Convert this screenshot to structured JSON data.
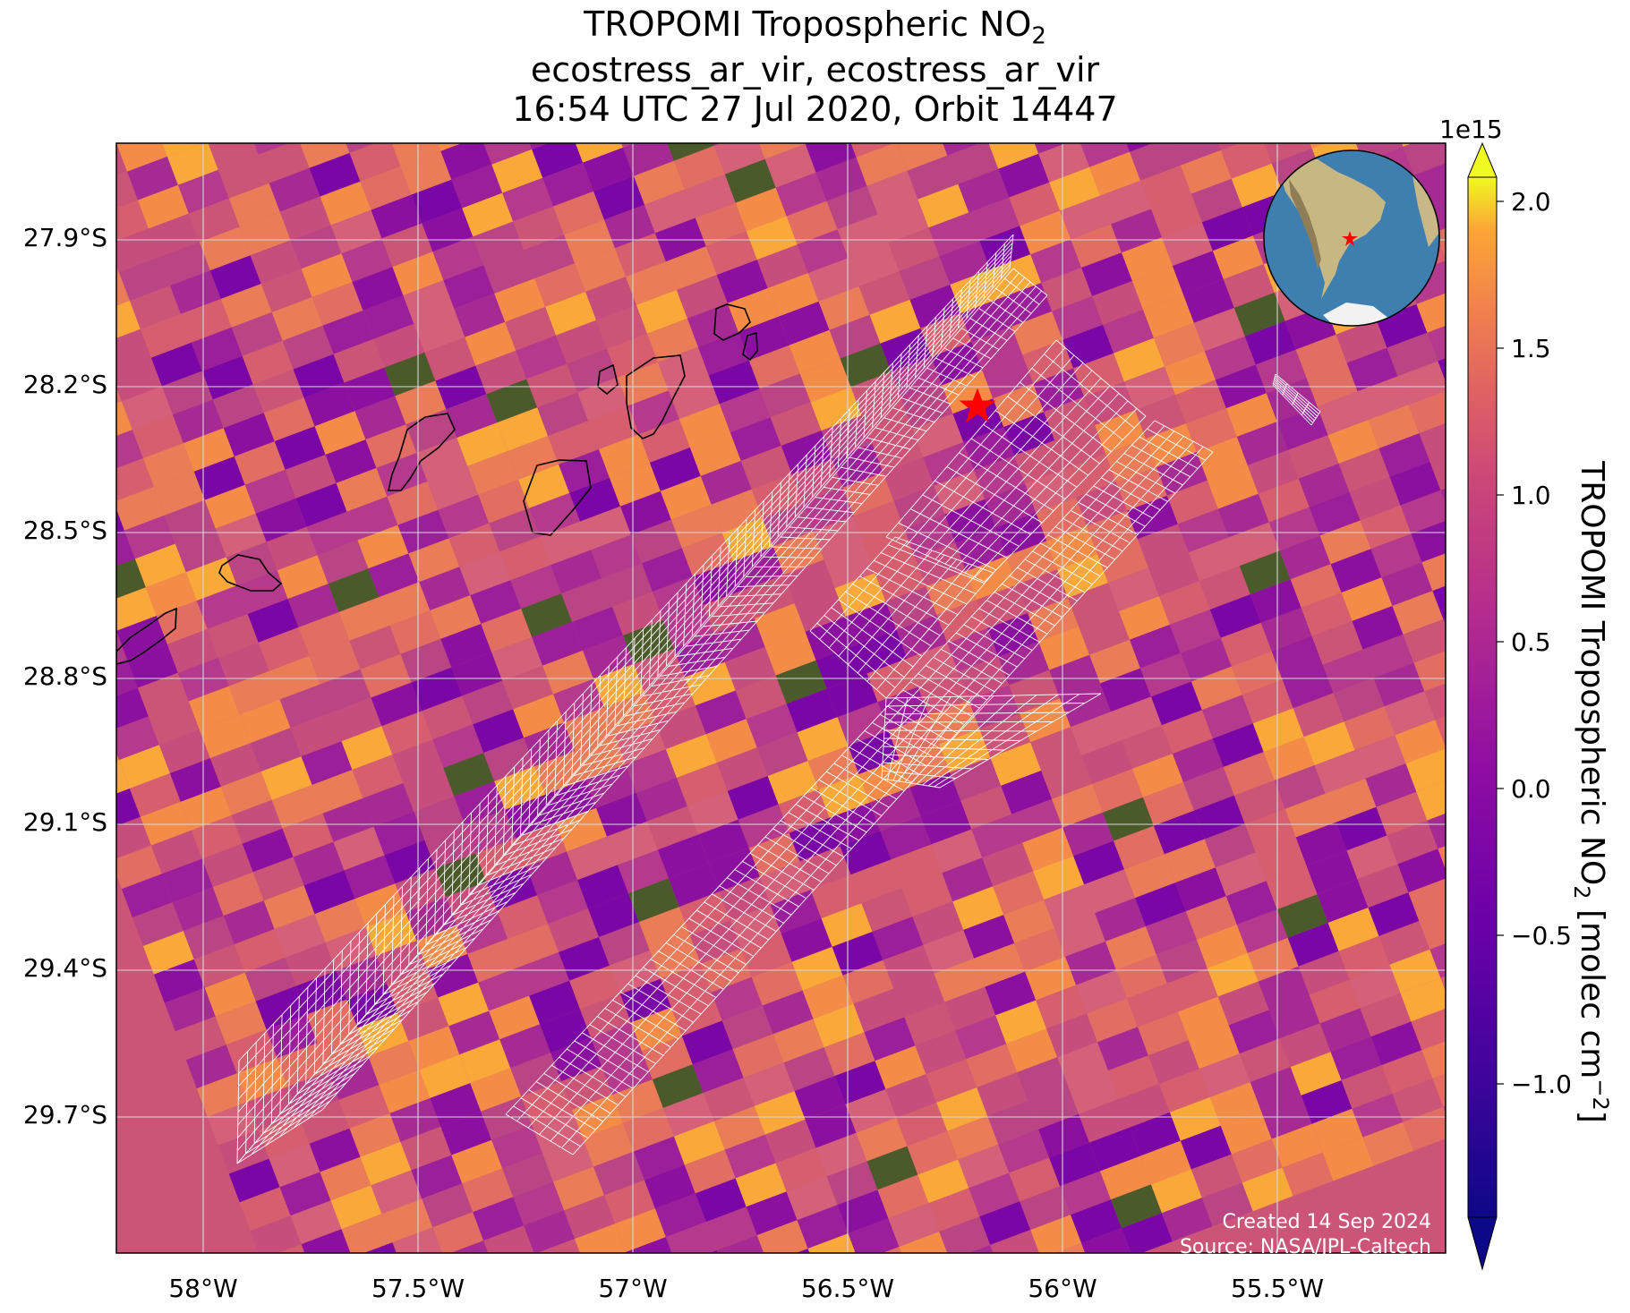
{
  "title": {
    "line1": "TROPOMI Tropospheric NO",
    "line1_sub": "2",
    "line2": "ecostress_ar_vir, ecostress_ar_vir",
    "line3": "16:54 UTC 27 Jul 2020, Orbit 14447"
  },
  "map": {
    "lon_range": [
      -58.22,
      -55.14
    ],
    "lat_range": [
      -29.95,
      -27.72
    ],
    "lat_ticks": [
      "27.9°S",
      "28.2°S",
      "28.5°S",
      "28.8°S",
      "29.1°S",
      "29.4°S",
      "29.7°S"
    ],
    "lon_ticks": [
      "58°W",
      "57.5°W",
      "57°W",
      "56.5°W",
      "56°W",
      "55.5°W"
    ],
    "grid": true,
    "site_marker": {
      "lon": -56.2,
      "lat": -28.24,
      "symbol": "red-star"
    },
    "inset_globe": {
      "content": "South America with red star marker",
      "position": "top-right"
    }
  },
  "colorbar": {
    "multiplier": "1e15",
    "ticks": [
      "2.0",
      "1.5",
      "1.0",
      "0.5",
      "0.0",
      "−0.5",
      "−1.0"
    ],
    "range": [
      -1.45,
      2.1
    ],
    "colormap": "plasma",
    "extend": "both",
    "label_main": "TROPOMI Tropospheric NO",
    "label_sub": "2",
    "label_unit": " [molec cm",
    "label_sup": "−2",
    "label_end": "]"
  },
  "credits": {
    "created": "Created 14 Sep 2024",
    "source": "Source: NASA/JPL-Caltech"
  },
  "colors": {
    "background_mid": "#cc5577",
    "star": "#ff0000",
    "coastline": "#000000",
    "swath_grid": "#ffffff"
  }
}
